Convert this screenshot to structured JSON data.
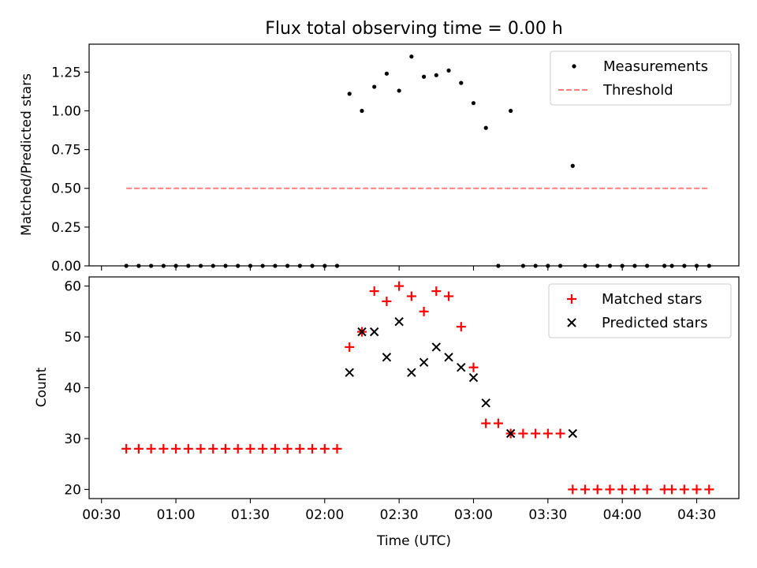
{
  "figure_title": "Flux total observing time = 0.00 h",
  "colors": {
    "matched": "#ff0000",
    "predicted": "#000000",
    "threshold": "#ff7f7f",
    "measurement": "#000000"
  },
  "chart_data": [
    {
      "type": "scatter",
      "panel": "top",
      "title": "Flux total observing time = 0.00 h",
      "xlabel": "",
      "ylabel": "Matched/Predicted stars",
      "xlim": [
        "00:25",
        "04:47"
      ],
      "ylim": [
        0,
        1.43
      ],
      "yticks": [
        0.0,
        0.25,
        0.5,
        0.75,
        1.0,
        1.25
      ],
      "ytick_labels": [
        "0.00",
        "0.25",
        "0.50",
        "0.75",
        "1.00",
        "1.25"
      ],
      "xticks": [
        "00:30",
        "01:00",
        "01:30",
        "02:00",
        "02:30",
        "03:00",
        "03:30",
        "04:00",
        "04:30"
      ],
      "legend_position": "top-right",
      "series": [
        {
          "name": "Measurements",
          "marker": "dot",
          "x": [
            "00:40",
            "00:45",
            "00:50",
            "00:55",
            "01:00",
            "01:05",
            "01:10",
            "01:15",
            "01:20",
            "01:25",
            "01:30",
            "01:35",
            "01:40",
            "01:45",
            "01:50",
            "01:55",
            "02:00",
            "02:05",
            "02:10",
            "02:15",
            "02:20",
            "02:25",
            "02:30",
            "02:35",
            "02:40",
            "02:45",
            "02:50",
            "02:55",
            "03:00",
            "03:05",
            "03:10",
            "03:15",
            "03:20",
            "03:25",
            "03:30",
            "03:35",
            "03:40",
            "03:45",
            "03:50",
            "03:55",
            "04:00",
            "04:05",
            "04:10",
            "04:17",
            "04:20",
            "04:25",
            "04:30",
            "04:35"
          ],
          "y": [
            0,
            0,
            0,
            0,
            0,
            0,
            0,
            0,
            0,
            0,
            0,
            0,
            0,
            0,
            0,
            0,
            0,
            0,
            1.11,
            1.0,
            1.155,
            1.24,
            1.13,
            1.35,
            1.22,
            1.23,
            1.26,
            1.18,
            1.05,
            0.89,
            0,
            1.0,
            0,
            0,
            0,
            0,
            0.645,
            0,
            0,
            0,
            0,
            0,
            0,
            0,
            0,
            0,
            0,
            0
          ]
        },
        {
          "name": "Threshold",
          "style": "dashed",
          "x": [
            "00:40",
            "04:35"
          ],
          "y": [
            0.5,
            0.5
          ]
        }
      ]
    },
    {
      "type": "scatter",
      "panel": "bottom",
      "xlabel": "Time (UTC)",
      "ylabel": "Count",
      "xlim": [
        "00:25",
        "04:47"
      ],
      "ylim": [
        18.2,
        61.8
      ],
      "yticks": [
        20,
        30,
        40,
        50,
        60
      ],
      "xticks": [
        "00:30",
        "01:00",
        "01:30",
        "02:00",
        "02:30",
        "03:00",
        "03:30",
        "04:00",
        "04:30"
      ],
      "xtick_labels": [
        "00:30",
        "01:00",
        "01:30",
        "02:00",
        "02:30",
        "03:00",
        "03:30",
        "04:00",
        "04:30"
      ],
      "legend_position": "top-right",
      "series": [
        {
          "name": "Matched stars",
          "marker": "plus",
          "x": [
            "00:40",
            "00:45",
            "00:50",
            "00:55",
            "01:00",
            "01:05",
            "01:10",
            "01:15",
            "01:20",
            "01:25",
            "01:30",
            "01:35",
            "01:40",
            "01:45",
            "01:50",
            "01:55",
            "02:00",
            "02:05",
            "02:10",
            "02:15",
            "02:20",
            "02:25",
            "02:30",
            "02:35",
            "02:40",
            "02:45",
            "02:50",
            "02:55",
            "03:00",
            "03:05",
            "03:10",
            "03:15",
            "03:20",
            "03:25",
            "03:30",
            "03:35",
            "03:40",
            "03:45",
            "03:50",
            "03:55",
            "04:00",
            "04:05",
            "04:10",
            "04:17",
            "04:20",
            "04:25",
            "04:30",
            "04:35"
          ],
          "y": [
            28,
            28,
            28,
            28,
            28,
            28,
            28,
            28,
            28,
            28,
            28,
            28,
            28,
            28,
            28,
            28,
            28,
            28,
            48,
            51,
            59,
            57,
            60,
            58,
            55,
            59,
            58,
            52,
            44,
            33,
            33,
            31,
            31,
            31,
            31,
            31,
            20,
            20,
            20,
            20,
            20,
            20,
            20,
            20,
            20,
            20,
            20,
            20
          ]
        },
        {
          "name": "Predicted stars",
          "marker": "x",
          "x": [
            "02:10",
            "02:15",
            "02:20",
            "02:25",
            "02:30",
            "02:35",
            "02:40",
            "02:45",
            "02:50",
            "02:55",
            "03:00",
            "03:05",
            "03:15",
            "03:40"
          ],
          "y": [
            43,
            51,
            51,
            46,
            53,
            43,
            45,
            48,
            46,
            44,
            42,
            37,
            31,
            31
          ]
        }
      ]
    }
  ]
}
